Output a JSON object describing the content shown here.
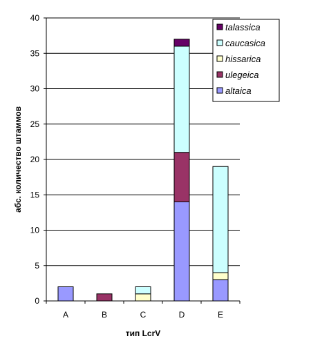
{
  "chart_data": {
    "type": "bar",
    "stacked": true,
    "categories": [
      "A",
      "B",
      "C",
      "D",
      "E"
    ],
    "series": [
      {
        "name": "altaica",
        "color": "#9999ff",
        "values": [
          2,
          0,
          0,
          14,
          3
        ]
      },
      {
        "name": "ulegeica",
        "color": "#993366",
        "values": [
          0,
          1,
          0,
          7,
          0
        ]
      },
      {
        "name": "hissarica",
        "color": "#ffffcc",
        "values": [
          0,
          0,
          1,
          0,
          1
        ]
      },
      {
        "name": "caucasica",
        "color": "#ccffff",
        "values": [
          0,
          0,
          1,
          15,
          15
        ]
      },
      {
        "name": "talassica",
        "color": "#660066",
        "values": [
          0,
          0,
          0,
          1,
          0
        ]
      }
    ],
    "xlabel": "тип LcrV",
    "ylabel": "абс. количество штаммов",
    "ylim": [
      0,
      40
    ],
    "yticks": [
      0,
      5,
      10,
      15,
      20,
      25,
      30,
      35,
      40
    ],
    "grid": true,
    "legend_position": "top-right"
  }
}
